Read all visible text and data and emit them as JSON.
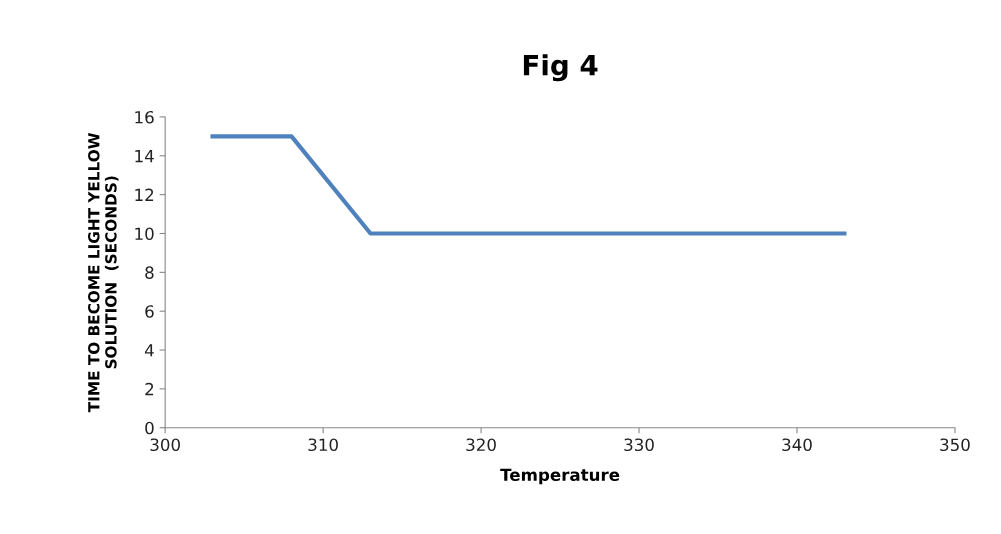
{
  "chart_data": {
    "type": "line",
    "title": "Fig 4",
    "xlabel": "Temperature",
    "ylabel": "TIME TO BECOME LIGHT YELLOW\nSOLUTION  (SECONDS)",
    "x": [
      303,
      308,
      313,
      318,
      323,
      328,
      333,
      338,
      343
    ],
    "series": [
      {
        "color": "#4f81bd",
        "values": [
          15,
          15,
          10,
          10,
          10,
          10,
          10,
          10,
          10
        ]
      }
    ],
    "xlim": [
      300,
      350
    ],
    "xticks": [
      300,
      310,
      320,
      330,
      340,
      350
    ],
    "ylim": [
      0,
      16
    ],
    "yticks": [
      0,
      2,
      4,
      6,
      8,
      10,
      12,
      14,
      16
    ],
    "grid": false,
    "legend": false,
    "marker": "none",
    "line_style": "solid"
  }
}
